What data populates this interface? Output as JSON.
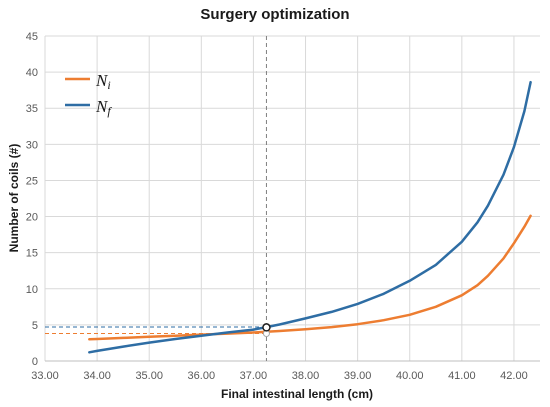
{
  "chart_data": {
    "type": "line",
    "title": "Surgery optimization",
    "xlabel": "Final intestinal length (cm)",
    "ylabel": "Number of coils (#)",
    "xlim": [
      33,
      42.5
    ],
    "ylim": [
      0,
      45
    ],
    "xticks": [
      33,
      34,
      35,
      36,
      37,
      38,
      39,
      40,
      41,
      42
    ],
    "xtick_labels": [
      "33.00",
      "34.00",
      "35.00",
      "36.00",
      "37.00",
      "38.00",
      "39.00",
      "40.00",
      "41.00",
      "42.00"
    ],
    "yticks": [
      0,
      5,
      10,
      15,
      20,
      25,
      30,
      35,
      40,
      45
    ],
    "ytick_labels": [
      "0",
      "5",
      "10",
      "15",
      "20",
      "25",
      "30",
      "35",
      "40",
      "45"
    ],
    "grid": true,
    "legend_position": "top-left",
    "series": [
      {
        "name": "Ni",
        "legend_base": "N",
        "legend_sub": "i",
        "color": "#ED7D31",
        "x": [
          33.85,
          34.0,
          34.5,
          35.0,
          35.5,
          36.0,
          36.5,
          37.0,
          37.25,
          37.5,
          38.0,
          38.5,
          39.0,
          39.5,
          40.0,
          40.5,
          41.0,
          41.3,
          41.5,
          41.8,
          42.0,
          42.2,
          42.32
        ],
        "y": [
          3.0,
          3.05,
          3.2,
          3.35,
          3.5,
          3.65,
          3.8,
          3.95,
          4.05,
          4.15,
          4.4,
          4.7,
          5.1,
          5.65,
          6.4,
          7.5,
          9.1,
          10.5,
          11.8,
          14.2,
          16.3,
          18.6,
          20.1
        ]
      },
      {
        "name": "Nf",
        "legend_base": "N",
        "legend_sub": "f",
        "color": "#2E6DA4",
        "x": [
          33.85,
          34.0,
          34.5,
          35.0,
          35.5,
          36.0,
          36.5,
          37.0,
          37.25,
          37.5,
          38.0,
          38.5,
          39.0,
          39.5,
          40.0,
          40.5,
          41.0,
          41.3,
          41.5,
          41.8,
          42.0,
          42.2,
          42.32
        ],
        "y": [
          1.2,
          1.4,
          2.0,
          2.55,
          3.05,
          3.5,
          3.95,
          4.35,
          4.7,
          5.05,
          5.9,
          6.8,
          7.9,
          9.3,
          11.1,
          13.3,
          16.5,
          19.2,
          21.5,
          25.8,
          29.6,
          34.6,
          38.6
        ]
      }
    ],
    "intersection": {
      "x": 37.25,
      "y": 4.65,
      "ni_level": 3.8,
      "nf_level": 4.7
    }
  }
}
